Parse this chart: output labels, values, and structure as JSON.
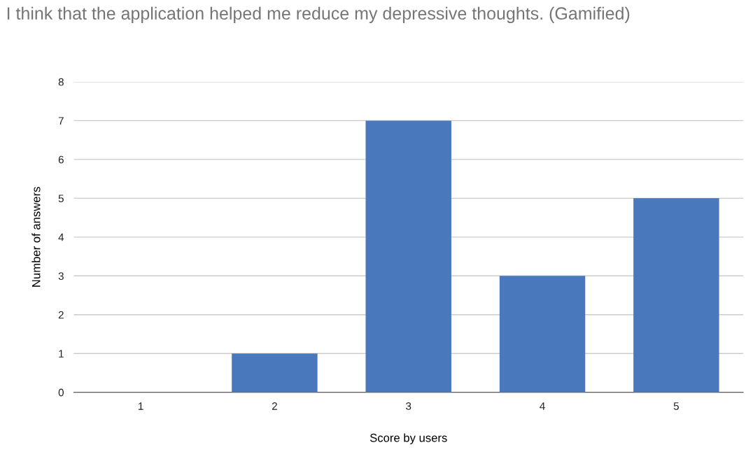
{
  "chart_data": {
    "type": "bar",
    "title": "I think that the application helped me reduce my depressive thoughts. (Gamified)",
    "xlabel": "Score by users",
    "ylabel": "Number of answers",
    "categories": [
      "1",
      "2",
      "3",
      "4",
      "5"
    ],
    "values": [
      0,
      1,
      7,
      3,
      5
    ],
    "color": "#4a78bd",
    "ylim": [
      0,
      8
    ],
    "yticks": [
      0,
      1,
      2,
      3,
      4,
      5,
      6,
      7,
      8
    ],
    "grid": "y"
  }
}
